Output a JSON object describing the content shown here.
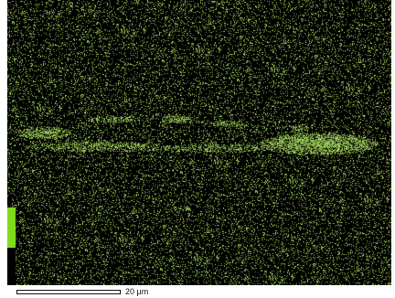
{
  "image": {
    "type": "elemental-map",
    "map_color": "#b9f06a",
    "background_color": "#000000",
    "intensity_bar_colors": [
      "#7fdc1a",
      "#000000"
    ]
  },
  "scale_bar": {
    "label": "20 µm"
  }
}
